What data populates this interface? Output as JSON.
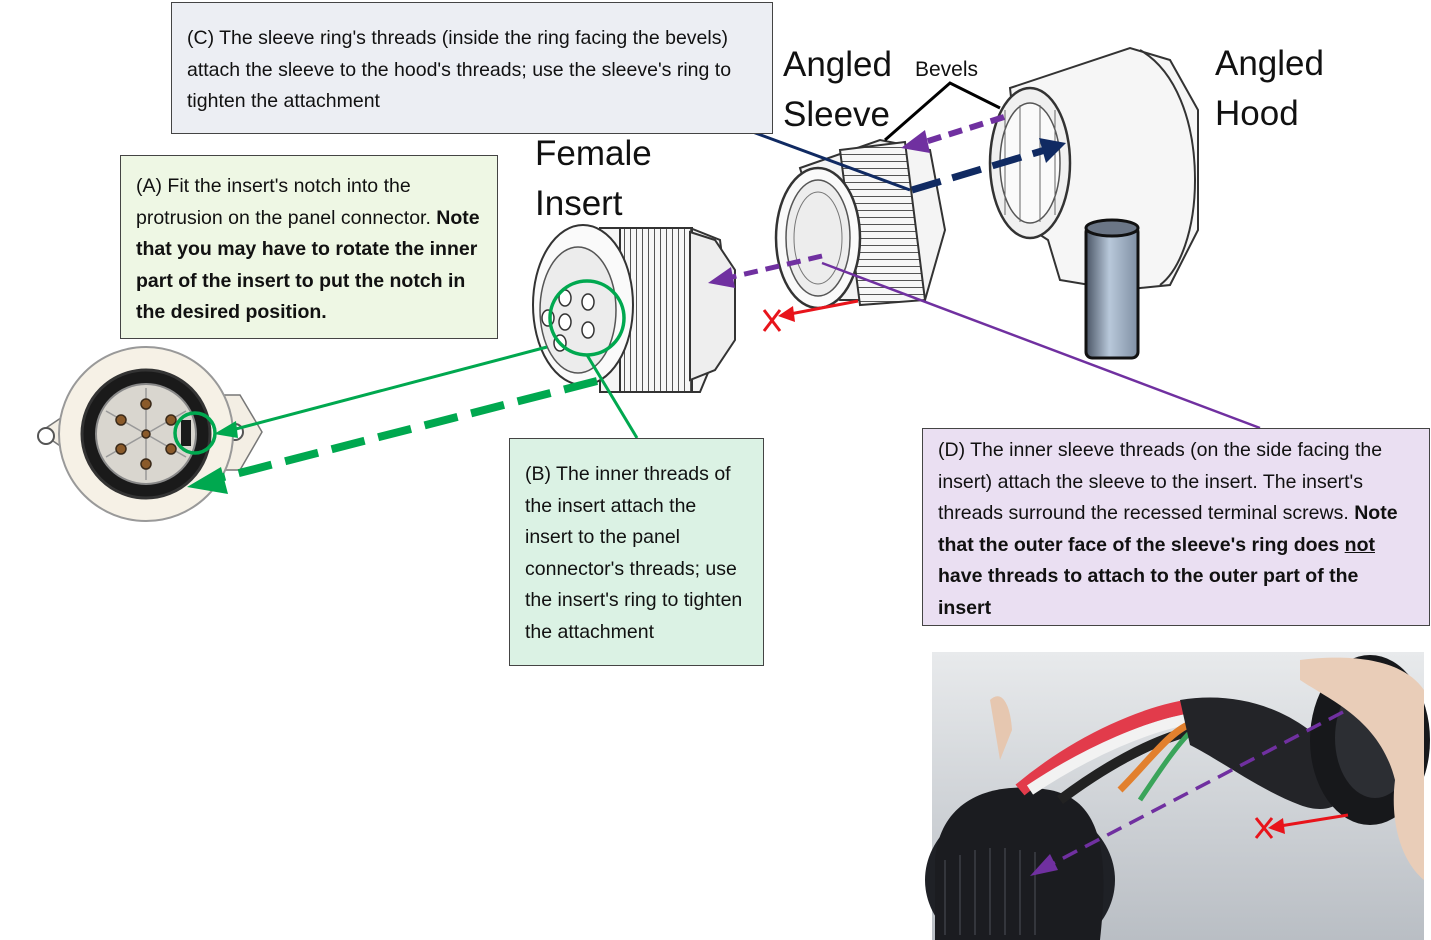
{
  "parts": {
    "sleeve": [
      "Angled",
      "Sleeve"
    ],
    "hood": [
      "Angled",
      "Hood"
    ],
    "insert": [
      "Female",
      "Insert"
    ],
    "bevels": "Bevels"
  },
  "callouts": {
    "a": {
      "text": "(A) Fit the insert's notch into the protrusion on the panel connector.",
      "bold": "Note that you may have to rotate the inner part of the insert to put the notch in the desired position."
    },
    "b": {
      "text": "(B) The inner threads of the insert attach the insert to the panel connector's threads; use the insert's ring to tighten the attachment"
    },
    "c": {
      "text": "(C) The sleeve ring's threads (inside the ring facing the bevels) attach the sleeve to the hood's threads; use the sleeve's ring to tighten the attachment"
    },
    "d": {
      "text": "(D) The inner sleeve threads (on the side facing the insert) attach the sleeve to the insert. The insert's threads surround the recessed terminal screws.",
      "bold_before": "Note that the outer face of the sleeve's ring does",
      "bold_underlined": "not",
      "bold_after": "have threads to attach to the outer part of the insert"
    }
  },
  "colors": {
    "green": "#00a84f",
    "navy": "#102a62",
    "purple": "#7030a0",
    "red": "#e8141b",
    "box_a": "#eef7e4",
    "box_b": "#dbf2e4",
    "box_c": "#eceef3",
    "box_d": "#eadff2"
  }
}
